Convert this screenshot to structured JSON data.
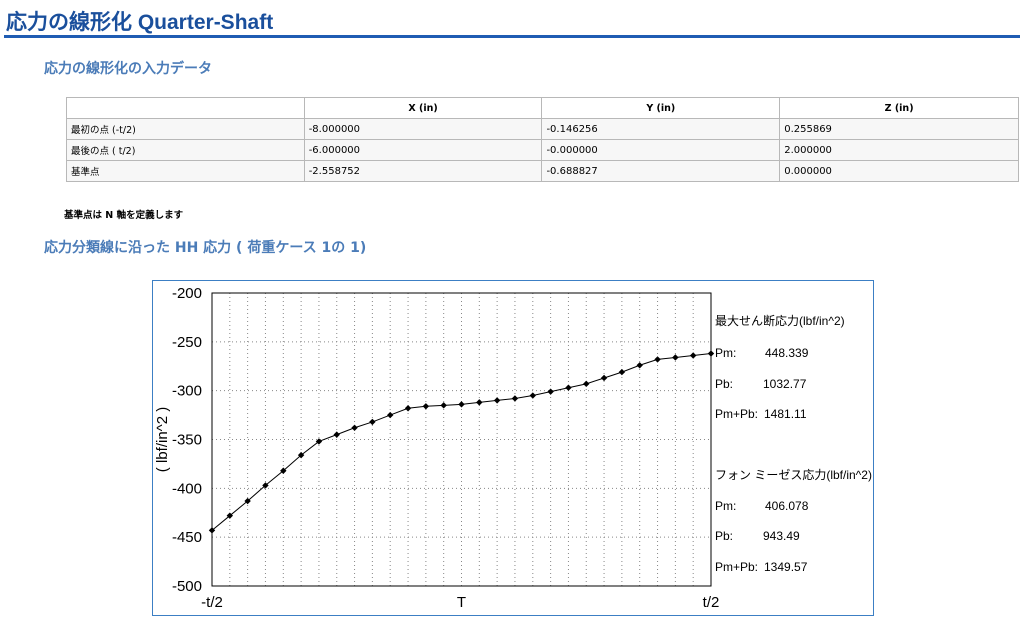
{
  "page": {
    "title": "応力の線形化 Quarter-Shaft",
    "input_heading": "応力の線形化の入力データ",
    "chart_heading": "応力分類線に沿った HH 応力 ( 荷重ケース 1の 1)",
    "note": "基準点は N 軸を定義します"
  },
  "input_table": {
    "headers": [
      "",
      "X (in)",
      "Y (in)",
      "Z (in)"
    ],
    "rows": [
      [
        "最初の点 (-t/2)",
        "-8.000000",
        "-0.146256",
        "0.255869"
      ],
      [
        "最後の点 ( t/2)",
        "-6.000000",
        "-0.000000",
        "2.000000"
      ],
      [
        "基準点",
        "-2.558752",
        "-0.688827",
        "0.000000"
      ]
    ]
  },
  "chart_data": {
    "type": "line",
    "xlabel": "T",
    "ylabel": "( lbf/in^2 )",
    "x_tick_labels": [
      "-t/2",
      "T",
      "t/2"
    ],
    "x": [
      0,
      0.0357,
      0.0714,
      0.1071,
      0.1429,
      0.1786,
      0.2143,
      0.25,
      0.2857,
      0.3214,
      0.3571,
      0.3929,
      0.4286,
      0.4643,
      0.5,
      0.5357,
      0.5714,
      0.6071,
      0.6429,
      0.6786,
      0.7143,
      0.75,
      0.7857,
      0.8214,
      0.8571,
      0.8929,
      0.9286,
      0.9643,
      1
    ],
    "xlim": [
      0,
      1
    ],
    "ylim": [
      -500,
      -200
    ],
    "y_ticks": [
      -200,
      -250,
      -300,
      -350,
      -400,
      -450,
      -500
    ],
    "grid": true,
    "series": [
      {
        "values": [
          -443,
          -428,
          -413,
          -397,
          -382,
          -366,
          -352,
          -345,
          -338,
          -332,
          -325,
          -318,
          -316,
          -315,
          -314,
          -312,
          -310,
          -308,
          -305,
          -301,
          -297,
          -293,
          -287,
          -281,
          -274,
          -268,
          -266,
          -264,
          -262
        ],
        "color": "#000000"
      }
    ],
    "annotations": {
      "max_shear_title": "最大せん断応力(lbf/in^2)",
      "max_shear": [
        {
          "label": "Pm:",
          "value": "448.339"
        },
        {
          "label": "Pb:",
          "value": "1032.77"
        },
        {
          "label": "Pm+Pb:",
          "value": "1481.11"
        }
      ],
      "von_mises_title": "フォン ミーゼス応力(lbf/in^2)",
      "von_mises": [
        {
          "label": "Pm:",
          "value": "406.078"
        },
        {
          "label": "Pb:",
          "value": "943.49"
        },
        {
          "label": "Pm+Pb:",
          "value": "1349.57"
        }
      ]
    }
  }
}
